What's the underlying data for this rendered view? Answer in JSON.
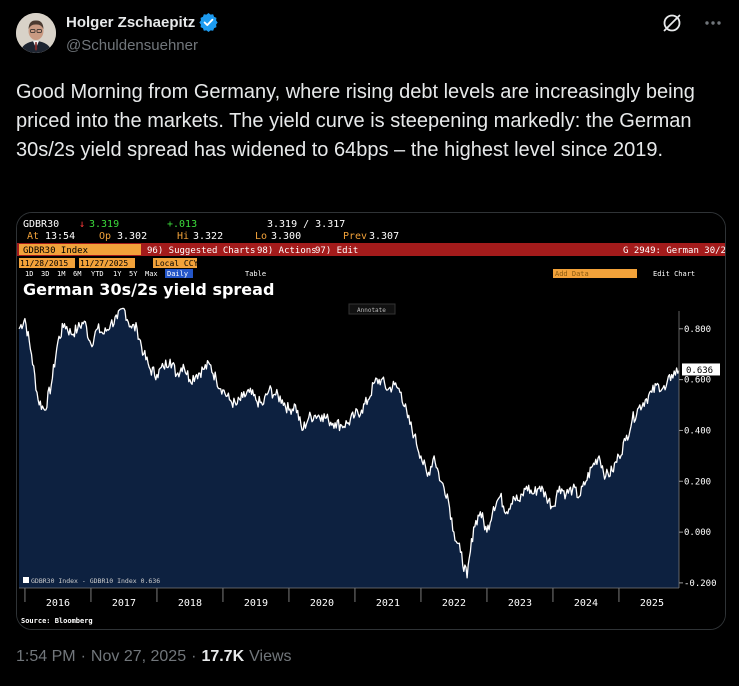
{
  "author": {
    "display_name": "Holger Zschaepitz",
    "handle": "@Schuldensuehner"
  },
  "tweet": {
    "text": "Good Morning from Germany, where rising debt levels are increasingly being priced into the markets. The yield curve is steepening markedly: the German 30s/2s yield spread has widened to 64bps – the highest level since 2019.",
    "time": "1:54 PM",
    "date": "Nov 27, 2025",
    "views_count": "17.7K",
    "views_label": "Views",
    "separator": "·"
  },
  "terminal": {
    "ticker": "GDBR30",
    "last_arrow": "↓",
    "last": "3.319",
    "change": "+.013",
    "bid_ask": "3.319 / 3.317",
    "at_label": "At",
    "at_time": "13:54",
    "op_label": "Op",
    "op": "3.302",
    "hi_label": "Hi",
    "hi": "3.322",
    "lo_label": "Lo",
    "lo": "3.300",
    "prev_label": "Prev",
    "prev": "3.307",
    "index_label": "GDBR30 Index",
    "menu_suggested": "96) Suggested Charts",
    "menu_actions": "98) Actions",
    "menu_edit": "97) Edit",
    "chart_id": "G 2949: German 30/2s",
    "date_from": "11/28/2015",
    "date_to": "11/27/2025",
    "currency": "Local CCY",
    "periods": [
      "1D",
      "3D",
      "1M",
      "6M",
      "YTD",
      "1Y",
      "5Y",
      "Max"
    ],
    "frequency": "Daily",
    "table_label": "Table",
    "add_data": "Add Data",
    "edit_chart": "Edit Chart",
    "annotate": "Annotate",
    "source": "Source: Bloomberg"
  },
  "chart_data": {
    "type": "area",
    "title": "German 30s/2s yield spread",
    "legend": "GDBR30 Index - GDBR10 Index  0.636",
    "last_value_label": "0.636",
    "x_ticks": [
      "2016",
      "2017",
      "2018",
      "2019",
      "2020",
      "2021",
      "2022",
      "2023",
      "2024",
      "2025"
    ],
    "y_ticks": [
      "0.800",
      "0.600",
      "0.400",
      "0.200",
      "0.000",
      "-0.200"
    ],
    "ylim": [
      -0.22,
      0.87
    ],
    "xlim": [
      2015.91,
      2025.91
    ],
    "grid": false,
    "legend_position": "bottom-left",
    "fill_color": "#0d2140",
    "line_color": "#ffffff",
    "x": [
      2015.91,
      2016.0,
      2016.1,
      2016.2,
      2016.3,
      2016.4,
      2016.5,
      2016.6,
      2016.7,
      2016.8,
      2016.9,
      2017.0,
      2017.1,
      2017.2,
      2017.3,
      2017.4,
      2017.5,
      2017.6,
      2017.7,
      2017.8,
      2017.9,
      2018.0,
      2018.1,
      2018.2,
      2018.3,
      2018.4,
      2018.5,
      2018.6,
      2018.7,
      2018.8,
      2018.9,
      2019.0,
      2019.1,
      2019.2,
      2019.3,
      2019.4,
      2019.5,
      2019.6,
      2019.7,
      2019.8,
      2019.9,
      2020.0,
      2020.1,
      2020.2,
      2020.3,
      2020.4,
      2020.5,
      2020.6,
      2020.7,
      2020.8,
      2020.9,
      2021.0,
      2021.1,
      2021.2,
      2021.3,
      2021.4,
      2021.5,
      2021.6,
      2021.7,
      2021.8,
      2021.9,
      2022.0,
      2022.1,
      2022.2,
      2022.3,
      2022.4,
      2022.5,
      2022.6,
      2022.7,
      2022.8,
      2022.9,
      2023.0,
      2023.1,
      2023.2,
      2023.3,
      2023.4,
      2023.5,
      2023.6,
      2023.7,
      2023.8,
      2023.9,
      2024.0,
      2024.1,
      2024.2,
      2024.3,
      2024.4,
      2024.5,
      2024.6,
      2024.7,
      2024.8,
      2024.9,
      2025.0,
      2025.1,
      2025.2,
      2025.3,
      2025.4,
      2025.5,
      2025.6,
      2025.7,
      2025.8,
      2025.91
    ],
    "y": [
      0.8,
      0.84,
      0.7,
      0.52,
      0.48,
      0.58,
      0.75,
      0.82,
      0.78,
      0.8,
      0.83,
      0.74,
      0.8,
      0.78,
      0.82,
      0.84,
      0.88,
      0.81,
      0.8,
      0.7,
      0.64,
      0.62,
      0.65,
      0.68,
      0.62,
      0.66,
      0.6,
      0.62,
      0.64,
      0.66,
      0.6,
      0.56,
      0.52,
      0.5,
      0.53,
      0.55,
      0.52,
      0.5,
      0.56,
      0.54,
      0.52,
      0.48,
      0.5,
      0.4,
      0.45,
      0.46,
      0.46,
      0.44,
      0.43,
      0.42,
      0.43,
      0.46,
      0.48,
      0.52,
      0.59,
      0.6,
      0.56,
      0.58,
      0.55,
      0.45,
      0.38,
      0.3,
      0.22,
      0.3,
      0.2,
      0.15,
      0.0,
      -0.08,
      -0.18,
      0.02,
      0.08,
      0.0,
      0.1,
      0.14,
      0.08,
      0.14,
      0.12,
      0.18,
      0.15,
      0.18,
      0.14,
      0.1,
      0.18,
      0.15,
      0.17,
      0.14,
      0.2,
      0.26,
      0.3,
      0.22,
      0.24,
      0.3,
      0.36,
      0.44,
      0.49,
      0.52,
      0.55,
      0.58,
      0.56,
      0.62,
      0.636
    ]
  }
}
